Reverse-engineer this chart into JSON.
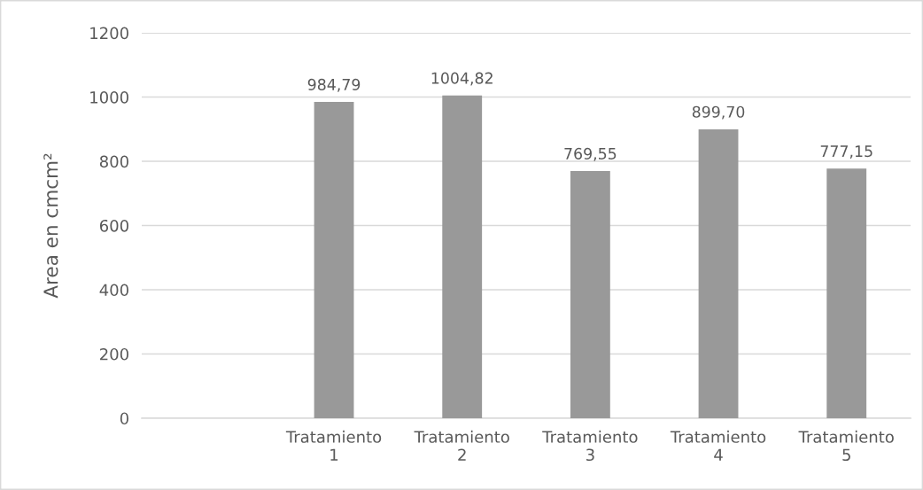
{
  "chart_data": {
    "type": "bar",
    "ylabel": "Area en cmcm²",
    "categories": [
      null,
      "Tratamiento 1",
      "Tratamiento 2",
      "Tratamiento 3",
      "Tratamiento 4",
      "Tratamiento 5"
    ],
    "values": [
      null,
      984.79,
      1004.82,
      769.55,
      899.7,
      777.15
    ],
    "value_labels": [
      null,
      "984,79",
      "1004,82",
      "769,55",
      "899,70",
      "777,15"
    ],
    "color": "#999999",
    "ylim": [
      0,
      1200
    ],
    "yticks": [
      0,
      200,
      400,
      600,
      800,
      1000,
      1200
    ],
    "grid": "y"
  }
}
